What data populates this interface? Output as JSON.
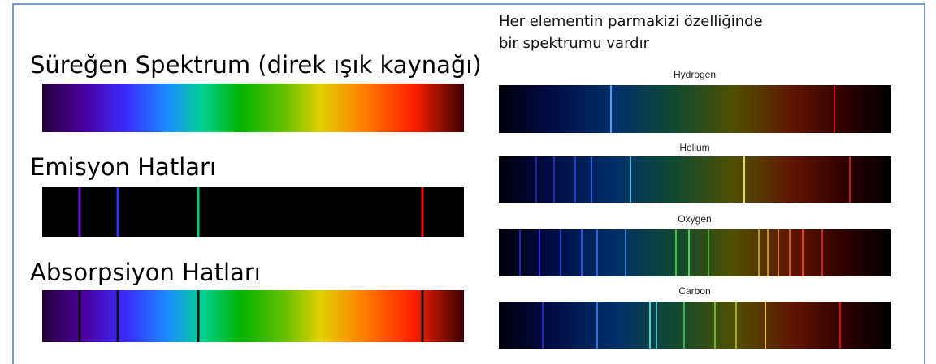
{
  "left": {
    "continuous_title": "Süreğen Spektrum (direk ışık kaynağı)",
    "emission_title": "Emisyon Hatları",
    "absorption_title": "Absorpsiyon Hatları"
  },
  "right": {
    "heading": [
      "Her elementin parmakizi özelliğinde",
      "bir spektrumu vardır"
    ],
    "spectra": [
      "Hydrogen",
      "Helium",
      "Oxygen",
      "Carbon"
    ]
  }
}
